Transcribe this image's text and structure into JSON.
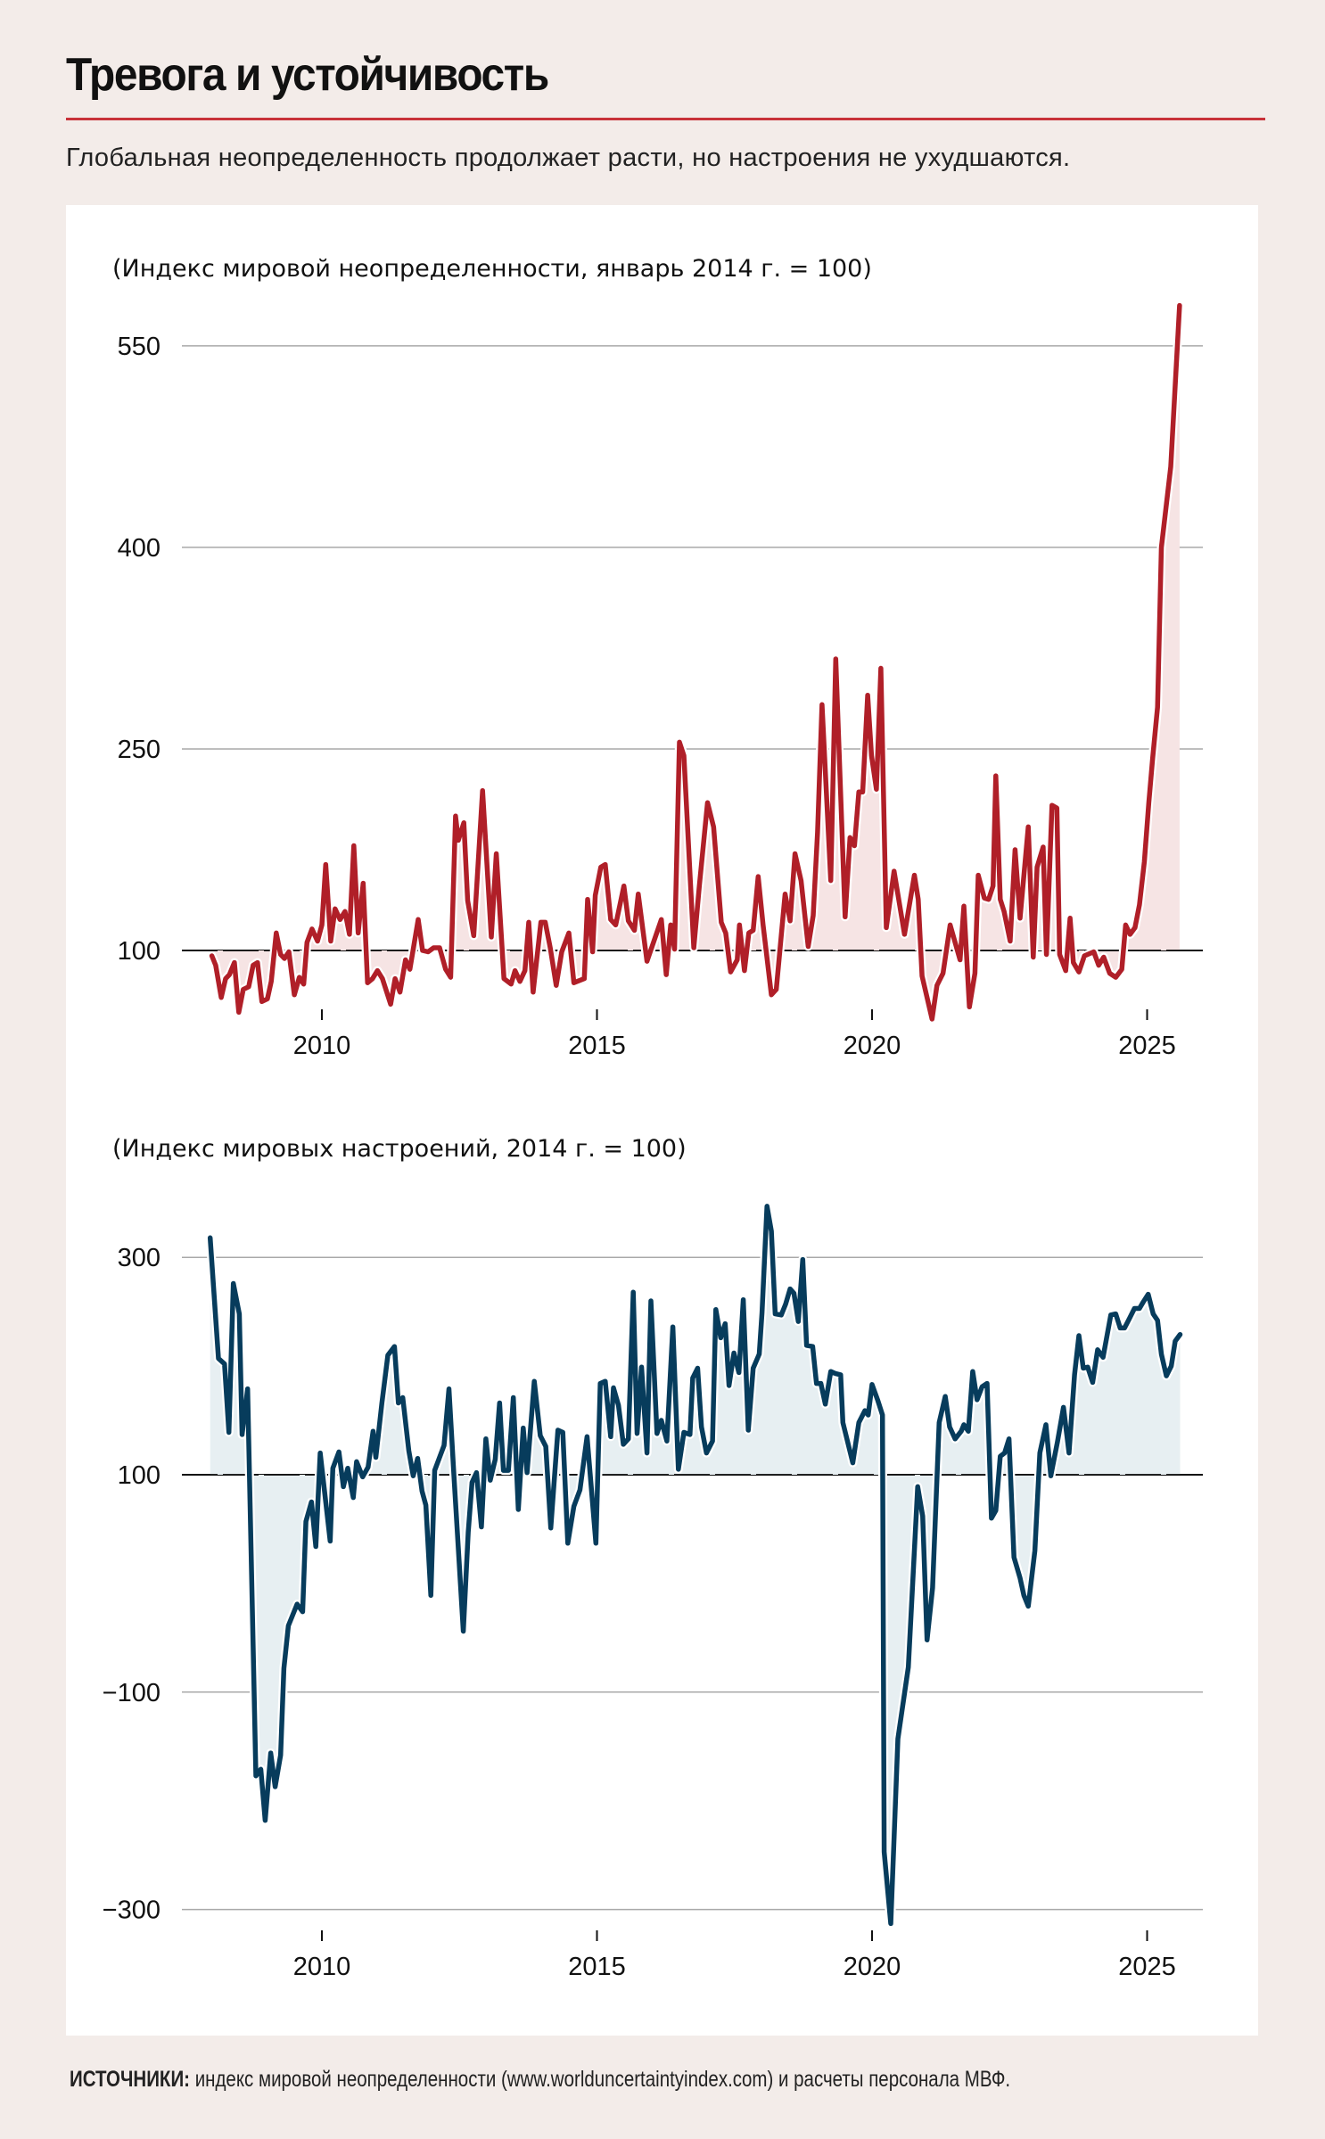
{
  "header": {
    "title": "Тревога и устойчивость",
    "subtitle": "Глобальная неопределенность продолжает расти, но настроения не ухудшаются."
  },
  "footer": {
    "label": "ИСТОЧНИКИ:",
    "text": " индекс мировой неопределенности (www.worlduncertaintyindex.com) и расчеты персонала МВФ."
  },
  "colors": {
    "background": "#f3ece9",
    "panel": "#ffffff",
    "rule": "#c8323a",
    "uncertainty_line": "#b01f28",
    "uncertainty_fill": "#f6e4e4",
    "sentiment_line": "#073c5c",
    "sentiment_fill": "#e7eff2",
    "grid": "#a9a9a9",
    "baseline": "#111111"
  },
  "chart_data": [
    {
      "type": "area",
      "title": "(Индекс мировой неопределенности, январь 2014 г. = 100)",
      "xlabel": "",
      "ylabel": "",
      "baseline": 100,
      "xlim": [
        2008.0,
        2025.6
      ],
      "ylim": [
        50,
        600
      ],
      "yticks": [
        100,
        250,
        400,
        550
      ],
      "xticks": [
        2010,
        2015,
        2020,
        2025
      ],
      "grid": true,
      "series": [
        {
          "name": "Индекс мировой неопределенности",
          "x": [
            2008.0,
            2008.07,
            2008.17,
            2008.25,
            2008.32,
            2008.41,
            2008.49,
            2008.57,
            2008.67,
            2008.75,
            2008.83,
            2008.91,
            2009.01,
            2009.08,
            2009.17,
            2009.25,
            2009.32,
            2009.4,
            2009.5,
            2009.59,
            2009.67,
            2009.73,
            2009.82,
            2009.92,
            2010.0,
            2010.07,
            2010.16,
            2010.24,
            2010.33,
            2010.42,
            2010.5,
            2010.58,
            2010.66,
            2010.75,
            2010.83,
            2010.92,
            2011.01,
            2011.1,
            2011.25,
            2011.33,
            2011.42,
            2011.52,
            2011.6,
            2011.75,
            2011.83,
            2011.93,
            2012.03,
            2012.14,
            2012.25,
            2012.34,
            2012.43,
            2012.48,
            2012.58,
            2012.65,
            2012.76,
            2012.92,
            2013.08,
            2013.17,
            2013.31,
            2013.44,
            2013.51,
            2013.6,
            2013.69,
            2013.76,
            2013.84,
            2013.98,
            2014.06,
            2014.15,
            2014.26,
            2014.36,
            2014.49,
            2014.58,
            2014.77,
            2014.83,
            2014.92,
            2014.97,
            2015.07,
            2015.15,
            2015.25,
            2015.34,
            2015.49,
            2015.57,
            2015.68,
            2015.75,
            2015.91,
            2016.17,
            2016.26,
            2016.34,
            2016.41,
            2016.5,
            2016.58,
            2016.76,
            2016.86,
            2017.01,
            2017.12,
            2017.26,
            2017.34,
            2017.43,
            2017.55,
            2017.59,
            2017.68,
            2017.76,
            2017.84,
            2017.93,
            2018.02,
            2018.17,
            2018.26,
            2018.42,
            2018.51,
            2018.6,
            2018.71,
            2018.84,
            2018.93,
            2019.01,
            2019.09,
            2019.25,
            2019.34,
            2019.51,
            2019.6,
            2019.68,
            2019.76,
            2019.83,
            2019.92,
            2019.99,
            2020.08,
            2020.16,
            2020.26,
            2020.4,
            2020.59,
            2020.77,
            2020.84,
            2020.91,
            2021.09,
            2021.18,
            2021.29,
            2021.42,
            2021.6,
            2021.67,
            2021.77,
            2021.87,
            2021.93,
            2022.04,
            2022.12,
            2022.2,
            2022.25,
            2022.33,
            2022.4,
            2022.51,
            2022.6,
            2022.69,
            2022.84,
            2022.93,
            2023.0,
            2023.11,
            2023.17,
            2023.27,
            2023.36,
            2023.41,
            2023.52,
            2023.6,
            2023.66,
            2023.76,
            2023.86,
            2024.03,
            2024.12,
            2024.21,
            2024.32,
            2024.43,
            2024.54,
            2024.61,
            2024.69,
            2024.78,
            2024.86,
            2024.95,
            2025.03,
            2025.1,
            2025.19,
            2025.26,
            2025.43,
            2025.59
          ],
          "values": [
            96,
            89,
            65,
            79,
            82,
            91,
            54,
            71,
            73,
            89,
            91,
            62,
            64,
            77,
            113,
            97,
            94,
            99,
            67,
            80,
            75,
            106,
            116,
            107,
            119,
            164,
            107,
            131,
            123,
            129,
            112,
            178,
            113,
            150,
            76,
            79,
            85,
            79,
            60,
            79,
            69,
            93,
            86,
            123,
            100,
            99,
            102,
            102,
            86,
            80,
            200,
            182,
            195,
            137,
            111,
            219,
            110,
            172,
            79,
            75,
            85,
            77,
            85,
            121,
            69,
            121,
            121,
            102,
            74,
            99,
            113,
            76,
            79,
            138,
            99,
            141,
            162,
            164,
            123,
            119,
            148,
            122,
            115,
            142,
            92,
            123,
            82,
            119,
            101,
            255,
            245,
            102,
            148,
            210,
            192,
            121,
            113,
            84,
            93,
            119,
            85,
            113,
            115,
            155,
            119,
            67,
            71,
            142,
            122,
            172,
            152,
            103,
            126,
            188,
            283,
            152,
            317,
            125,
            184,
            178,
            218,
            218,
            290,
            245,
            220,
            310,
            117,
            159,
            112,
            156,
            138,
            81,
            49,
            74,
            83,
            119,
            93,
            133,
            58,
            83,
            156,
            139,
            138,
            148,
            230,
            138,
            129,
            107,
            175,
            124,
            192,
            95,
            162,
            177,
            97,
            208,
            206,
            97,
            85,
            124,
            91,
            84,
            96,
            99,
            89,
            95,
            83,
            80,
            86,
            119,
            112,
            117,
            134,
            166,
            210,
            243,
            281,
            400,
            460,
            580
          ]
        }
      ]
    },
    {
      "type": "area",
      "title": "(Индекс мировых настроений, 2014 г. = 100)",
      "xlabel": "",
      "ylabel": "",
      "baseline": 100,
      "xlim": [
        2008.0,
        2025.6
      ],
      "ylim": [
        -320,
        360
      ],
      "yticks": [
        -300,
        -100,
        100,
        300
      ],
      "ytick_labels": [
        "−300",
        "−100",
        "100",
        "300"
      ],
      "xticks": [
        2010,
        2015,
        2020,
        2025
      ],
      "grid": true,
      "series": [
        {
          "name": "Индекс мировых настроений",
          "x": [
            2007.97,
            2008.12,
            2008.23,
            2008.31,
            2008.39,
            2008.5,
            2008.55,
            2008.65,
            2008.8,
            2008.89,
            2008.97,
            2009.07,
            2009.15,
            2009.25,
            2009.31,
            2009.39,
            2009.55,
            2009.65,
            2009.71,
            2009.81,
            2009.89,
            2009.97,
            2010.15,
            2010.2,
            2010.31,
            2010.39,
            2010.47,
            2010.57,
            2010.63,
            2010.74,
            2010.84,
            2010.93,
            2010.98,
            2011.09,
            2011.2,
            2011.32,
            2011.39,
            2011.47,
            2011.58,
            2011.66,
            2011.74,
            2011.82,
            2011.89,
            2011.98,
            2012.05,
            2012.22,
            2012.31,
            2012.4,
            2012.57,
            2012.66,
            2012.73,
            2012.81,
            2012.9,
            2012.98,
            2013.06,
            2013.15,
            2013.23,
            2013.3,
            2013.39,
            2013.48,
            2013.57,
            2013.66,
            2013.73,
            2013.86,
            2013.97,
            2014.07,
            2014.16,
            2014.29,
            2014.38,
            2014.47,
            2014.58,
            2014.69,
            2014.82,
            2014.98,
            2015.06,
            2015.15,
            2015.25,
            2015.3,
            2015.39,
            2015.48,
            2015.57,
            2015.66,
            2015.73,
            2015.81,
            2015.91,
            2015.98,
            2016.09,
            2016.17,
            2016.27,
            2016.38,
            2016.48,
            2016.58,
            2016.69,
            2016.74,
            2016.83,
            2016.9,
            2016.99,
            2017.1,
            2017.16,
            2017.25,
            2017.33,
            2017.4,
            2017.49,
            2017.58,
            2017.66,
            2017.75,
            2017.84,
            2017.95,
            2018.0,
            2018.09,
            2018.17,
            2018.24,
            2018.35,
            2018.43,
            2018.51,
            2018.58,
            2018.66,
            2018.74,
            2018.81,
            2018.92,
            2018.99,
            2019.07,
            2019.15,
            2019.25,
            2019.34,
            2019.43,
            2019.47,
            2019.65,
            2019.76,
            2019.87,
            2019.93,
            2020.0,
            2020.1,
            2020.19,
            2020.22,
            2020.34,
            2020.47,
            2020.66,
            2020.83,
            2020.92,
            2021.0,
            2021.1,
            2021.22,
            2021.33,
            2021.41,
            2021.51,
            2021.62,
            2021.67,
            2021.75,
            2021.83,
            2021.91,
            2022.0,
            2022.09,
            2022.17,
            2022.25,
            2022.33,
            2022.41,
            2022.49,
            2022.58,
            2022.69,
            2022.76,
            2022.84,
            2022.96,
            2023.05,
            2023.16,
            2023.25,
            2023.37,
            2023.48,
            2023.58,
            2023.68,
            2023.76,
            2023.84,
            2023.92,
            2024.01,
            2024.1,
            2024.2,
            2024.34,
            2024.43,
            2024.51,
            2024.59,
            2024.68,
            2024.77,
            2024.86,
            2024.93,
            2025.02,
            2025.11,
            2025.19,
            2025.26,
            2025.35,
            2025.44,
            2025.51,
            2025.6
          ],
          "values": [
            318,
            207,
            202,
            139,
            276,
            248,
            137,
            179,
            -177,
            -171,
            -218,
            -156,
            -187,
            -158,
            -78,
            -39,
            -19,
            -26,
            57,
            75,
            34,
            120,
            39,
            106,
            121,
            89,
            106,
            79,
            112,
            98,
            107,
            140,
            116,
            166,
            210,
            218,
            166,
            171,
            122,
            99,
            115,
            85,
            72,
            -11,
            104,
            127,
            179,
            99,
            -44,
            47,
            93,
            102,
            52,
            133,
            95,
            114,
            166,
            104,
            104,
            171,
            68,
            143,
            102,
            186,
            136,
            126,
            51,
            141,
            139,
            37,
            71,
            86,
            135,
            37,
            184,
            186,
            135,
            180,
            164,
            128,
            133,
            268,
            138,
            199,
            120,
            260,
            138,
            150,
            131,
            236,
            105,
            139,
            137,
            189,
            198,
            144,
            120,
            131,
            252,
            226,
            239,
            182,
            212,
            194,
            261,
            141,
            198,
            211,
            249,
            347,
            324,
            248,
            247,
            257,
            271,
            267,
            241,
            298,
            219,
            218,
            184,
            184,
            165,
            195,
            193,
            192,
            148,
            111,
            148,
            159,
            155,
            183,
            169,
            155,
            -247,
            -313,
            -143,
            -77,
            89,
            62,
            -52,
            -4,
            148,
            172,
            144,
            133,
            140,
            146,
            140,
            195,
            169,
            181,
            184,
            60,
            67,
            117,
            120,
            133,
            24,
            5,
            -11,
            -21,
            30,
            120,
            146,
            99,
            130,
            162,
            120,
            192,
            228,
            198,
            199,
            185,
            215,
            208,
            247,
            248,
            235,
            235,
            244,
            253,
            253,
            259,
            266,
            248,
            242,
            211,
            191,
            200,
            223,
            229
          ]
        }
      ]
    }
  ]
}
